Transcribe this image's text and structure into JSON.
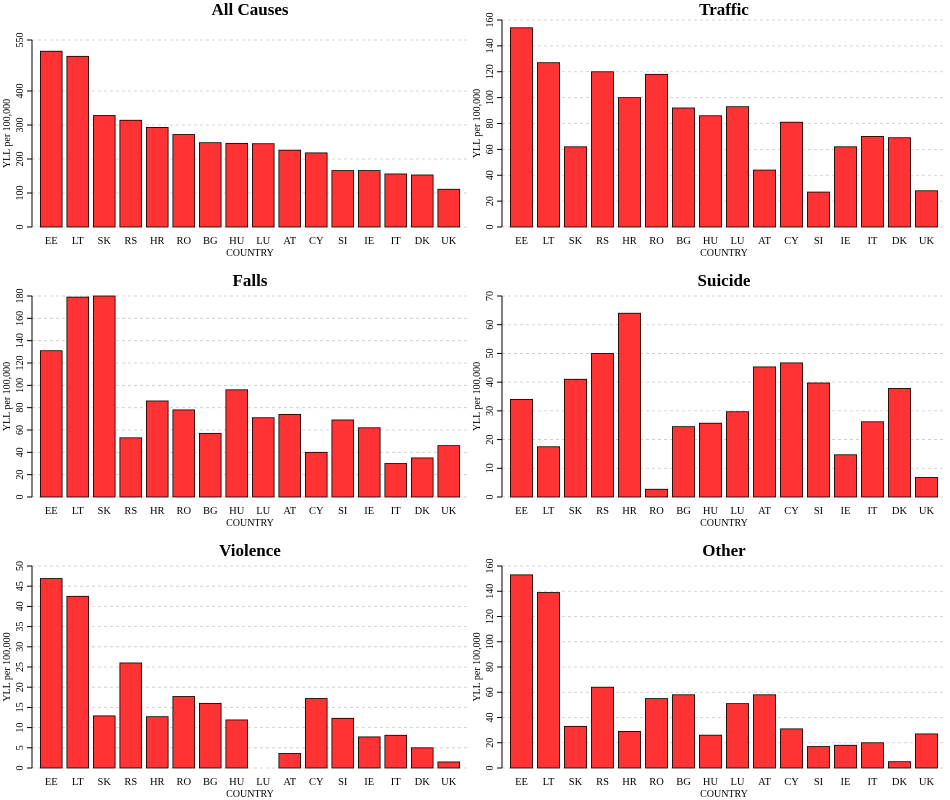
{
  "colors": {
    "bar": "#ff3333"
  },
  "chart_data": [
    {
      "type": "bar",
      "title": "All Causes",
      "xlabel": "COUNTRY",
      "ylabel": "YLL per 100,000",
      "ylim": [
        0,
        560
      ],
      "yticks": [
        0,
        100,
        200,
        300,
        400,
        550
      ],
      "grid": true,
      "categories": [
        "EE",
        "LT",
        "SK",
        "RS",
        "HR",
        "RO",
        "BG",
        "HU",
        "LU",
        "AT",
        "CY",
        "SI",
        "IE",
        "IT",
        "DK",
        "UK"
      ],
      "values": [
        517,
        502,
        328,
        314,
        293,
        272,
        248,
        246,
        245,
        226,
        218,
        166,
        166,
        156,
        153,
        111
      ]
    },
    {
      "type": "bar",
      "title": "Traffic",
      "xlabel": "COUNTRY",
      "ylabel": "YLL per 100,000",
      "ylim": [
        0,
        160
      ],
      "yticks": [
        0,
        20,
        40,
        60,
        80,
        100,
        120,
        140,
        160
      ],
      "grid": true,
      "categories": [
        "EE",
        "LT",
        "SK",
        "RS",
        "HR",
        "RO",
        "BG",
        "HU",
        "LU",
        "AT",
        "CY",
        "SI",
        "IE",
        "IT",
        "DK",
        "UK"
      ],
      "values": [
        154,
        127,
        62,
        120,
        100,
        118,
        92,
        86,
        93,
        44,
        81,
        27,
        62,
        70,
        69,
        28
      ]
    },
    {
      "type": "bar",
      "title": "Falls",
      "xlabel": "COUNTRY",
      "ylabel": "YLL per 100,000",
      "ylim": [
        0,
        180
      ],
      "yticks": [
        0,
        20,
        40,
        60,
        80,
        100,
        120,
        140,
        160,
        180
      ],
      "grid": true,
      "categories": [
        "EE",
        "LT",
        "SK",
        "RS",
        "HR",
        "RO",
        "BG",
        "HU",
        "LU",
        "AT",
        "CY",
        "SI",
        "IE",
        "IT",
        "DK",
        "UK"
      ],
      "values": [
        131,
        179,
        180,
        53,
        86,
        78,
        57,
        96,
        71,
        74,
        40,
        69,
        62,
        30,
        35,
        46
      ]
    },
    {
      "type": "bar",
      "title": "Suicide",
      "xlabel": "COUNTRY",
      "ylabel": "YLL per 100,000",
      "ylim": [
        0,
        70
      ],
      "yticks": [
        0,
        10,
        20,
        30,
        40,
        50,
        60,
        70
      ],
      "grid": true,
      "categories": [
        "EE",
        "LT",
        "SK",
        "RS",
        "HR",
        "RO",
        "BG",
        "HU",
        "LU",
        "AT",
        "CY",
        "SI",
        "IE",
        "IT",
        "DK",
        "UK"
      ],
      "values": [
        34,
        17.5,
        41,
        50,
        64,
        2.7,
        24.5,
        25.7,
        29.7,
        45.3,
        46.7,
        39.7,
        14.7,
        26.2,
        37.8,
        6.8
      ]
    },
    {
      "type": "bar",
      "title": "Violence",
      "xlabel": "COUNTRY",
      "ylabel": "YLL per 100,000",
      "ylim": [
        0,
        50
      ],
      "yticks": [
        0,
        5,
        10,
        15,
        20,
        25,
        30,
        35,
        40,
        45,
        50
      ],
      "grid": true,
      "categories": [
        "EE",
        "LT",
        "SK",
        "RS",
        "HR",
        "RO",
        "BG",
        "HU",
        "LU",
        "AT",
        "CY",
        "SI",
        "IE",
        "IT",
        "DK",
        "UK"
      ],
      "values": [
        46.9,
        42.5,
        12.9,
        26,
        12.7,
        17.7,
        16,
        11.9,
        0,
        3.6,
        17.2,
        12.3,
        7.7,
        8.1,
        5,
        1.5
      ]
    },
    {
      "type": "bar",
      "title": "Other",
      "xlabel": "COUNTRY",
      "ylabel": "YLL per 100,000",
      "ylim": [
        0,
        160
      ],
      "yticks": [
        0,
        20,
        40,
        60,
        80,
        100,
        120,
        140,
        160
      ],
      "grid": true,
      "categories": [
        "EE",
        "LT",
        "SK",
        "RS",
        "HR",
        "RO",
        "BG",
        "HU",
        "LU",
        "AT",
        "CY",
        "SI",
        "IE",
        "IT",
        "DK",
        "UK"
      ],
      "values": [
        153,
        139,
        33,
        64,
        29,
        55,
        58,
        26,
        51,
        58,
        31,
        17,
        18,
        20,
        5,
        27
      ]
    }
  ]
}
